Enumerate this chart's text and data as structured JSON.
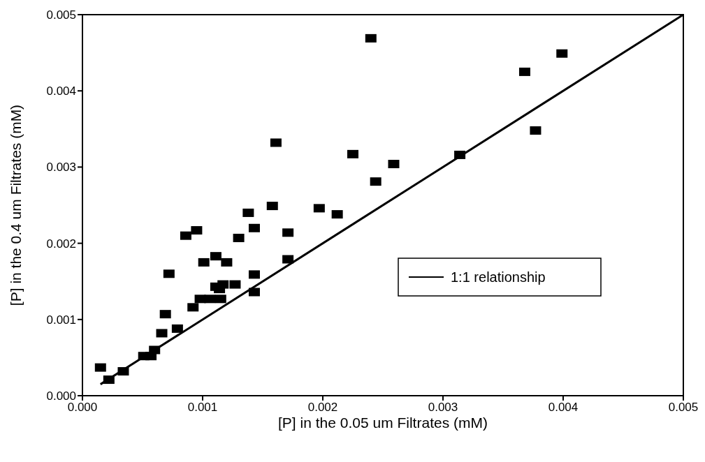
{
  "chart_data": {
    "type": "scatter",
    "xlabel": "[P] in the 0.05 um Filtrates  (mM)",
    "ylabel": "[P] in the 0.4 um Filtrates  (mM)",
    "xlim": [
      0,
      0.005
    ],
    "ylim": [
      0,
      0.005
    ],
    "xticks": [
      {
        "value": 0,
        "label": "0.000"
      },
      {
        "value": 0.001,
        "label": "0.001"
      },
      {
        "value": 0.002,
        "label": "0.002"
      },
      {
        "value": 0.003,
        "label": "0.003"
      },
      {
        "value": 0.004,
        "label": "0.004"
      },
      {
        "value": 0.005,
        "label": "0.005"
      }
    ],
    "yticks": [
      {
        "value": 0,
        "label": "0.000"
      },
      {
        "value": 0.001,
        "label": "0.001"
      },
      {
        "value": 0.002,
        "label": "0.002"
      },
      {
        "value": 0.003,
        "label": "0.003"
      },
      {
        "value": 0.004,
        "label": "0.004"
      },
      {
        "value": 0.005,
        "label": "0.005"
      }
    ],
    "grid": false,
    "legend": "right",
    "series": [
      {
        "color": "#000000",
        "marker": "square",
        "x": [
          0.00015,
          0.00022,
          0.00034,
          0.00051,
          0.00057,
          0.0006,
          0.00066,
          0.00069,
          0.00072,
          0.00079,
          0.00086,
          0.00095,
          0.00092,
          0.00098,
          0.00106,
          0.00115,
          0.00101,
          0.00111,
          0.0012,
          0.00111,
          0.00114,
          0.00117,
          0.00127,
          0.0013,
          0.00138,
          0.00143,
          0.00143,
          0.00143,
          0.00158,
          0.00171,
          0.00171,
          0.00161,
          0.00197,
          0.00212,
          0.00225,
          0.0024,
          0.00244,
          0.00259,
          0.00314,
          0.00368,
          0.00377,
          0.00399
        ],
        "values": [
          0.00037,
          0.00021,
          0.00032,
          0.00052,
          0.00052,
          0.0006,
          0.00082,
          0.00107,
          0.0016,
          0.00088,
          0.0021,
          0.00217,
          0.00116,
          0.00127,
          0.00127,
          0.00127,
          0.00175,
          0.00183,
          0.00175,
          0.00143,
          0.0014,
          0.00146,
          0.00146,
          0.00207,
          0.0024,
          0.0022,
          0.00159,
          0.00136,
          0.00249,
          0.00214,
          0.00179,
          0.00332,
          0.00246,
          0.00238,
          0.00317,
          0.00469,
          0.00281,
          0.00304,
          0.00316,
          0.00425,
          0.00348,
          0.00449
        ]
      },
      {
        "type": "line",
        "name": "1:1 relationship",
        "color": "#000000",
        "line_style": "solid",
        "x": [
          0.00015,
          0.005
        ],
        "values": [
          0.00015,
          0.005
        ]
      }
    ]
  }
}
